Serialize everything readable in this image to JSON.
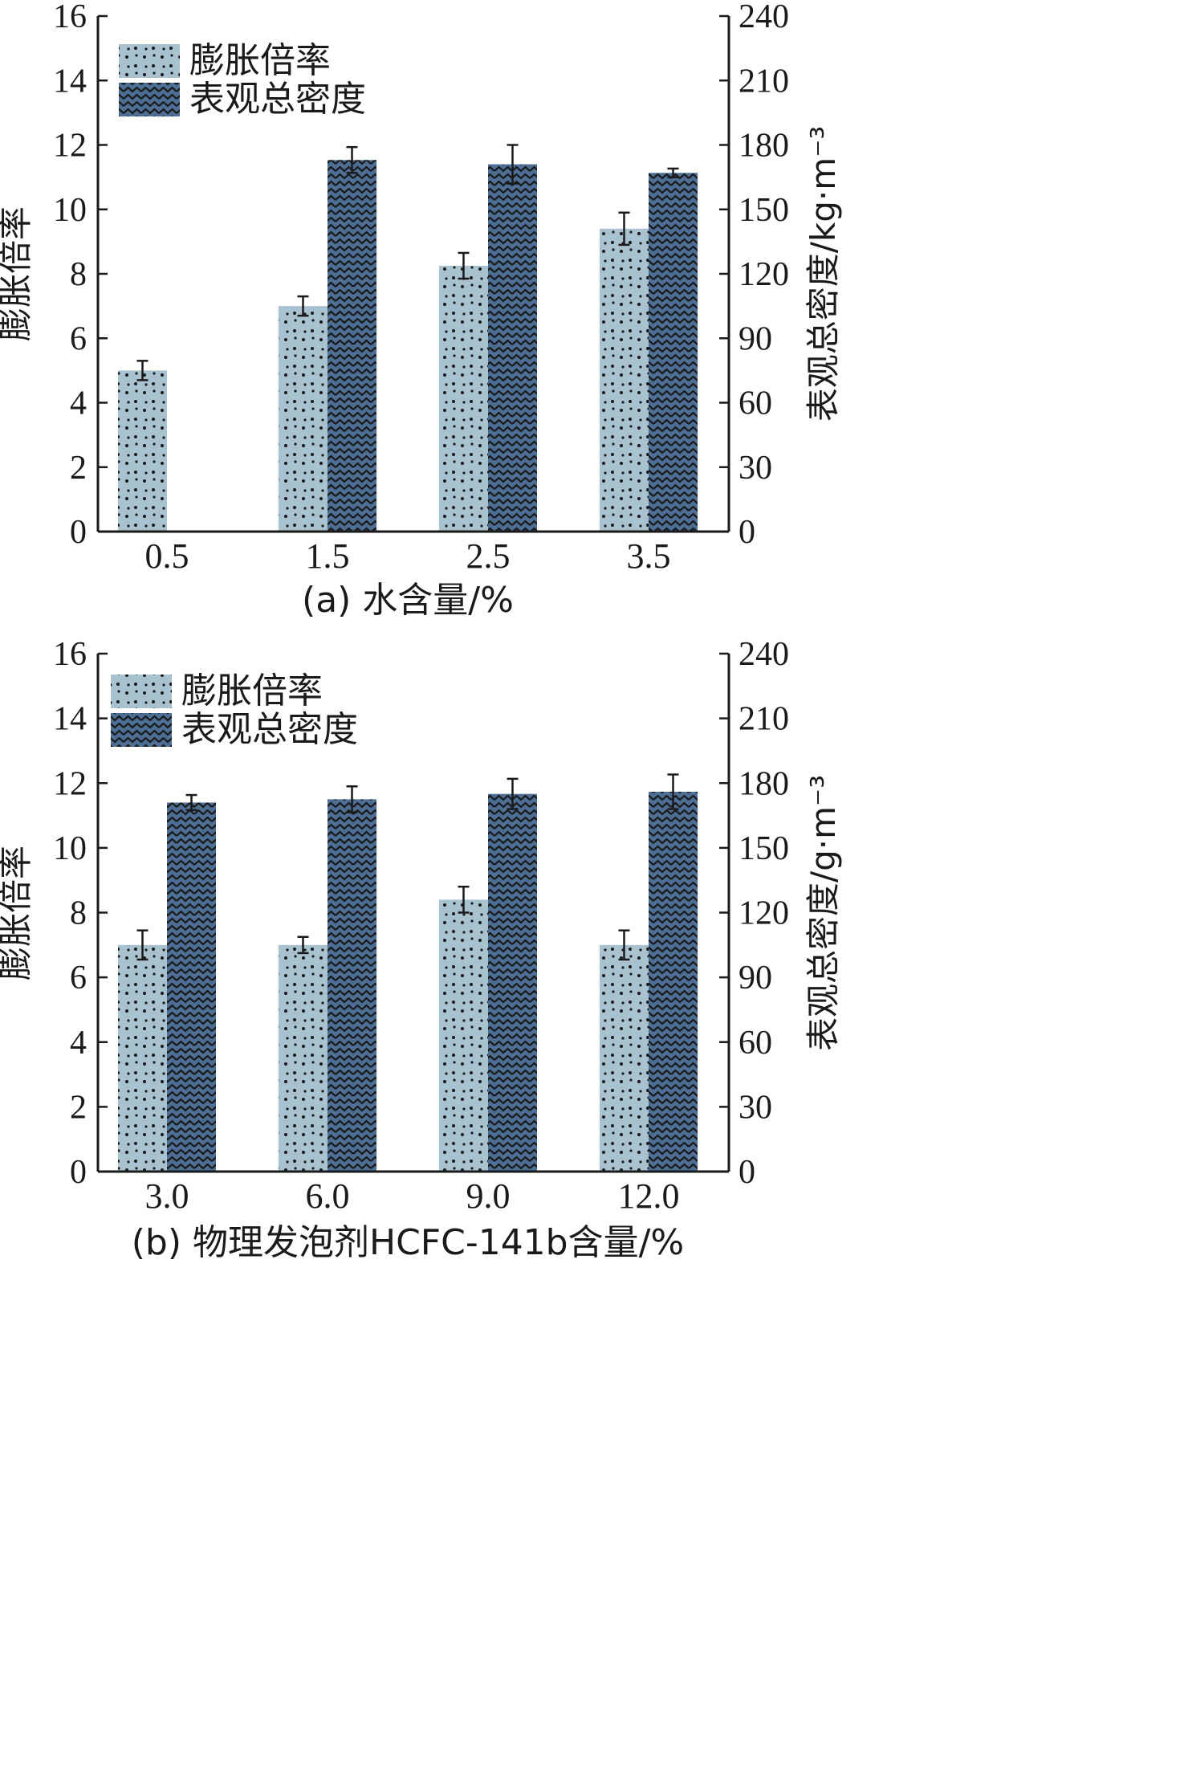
{
  "colors": {
    "expansion": "#a8c2cf",
    "density": "#4d6f95",
    "ink": "#1a1a1a"
  },
  "chart_data": [
    {
      "type": "bar",
      "panel": "a",
      "xtitle": "(a) 水含量/%",
      "ylabel_left": "膨胀倍率",
      "ylabel_right": "表观总密度/kg·m⁻³",
      "ylim_left": [
        0,
        16
      ],
      "ylim_right": [
        0,
        240
      ],
      "yticks_left": [
        "0",
        "2",
        "4",
        "6",
        "8",
        "10",
        "12",
        "14",
        "16"
      ],
      "yticks_right": [
        "0",
        "30",
        "60",
        "90",
        "120",
        "150",
        "180",
        "210",
        "240"
      ],
      "categories": [
        "0.5",
        "1.5",
        "2.5",
        "3.5"
      ],
      "legend_position": "top-left",
      "series": [
        {
          "name": "膨胀倍率",
          "axis": "left",
          "values": [
            5.0,
            7.0,
            8.25,
            9.4
          ],
          "errors": [
            0.3,
            0.3,
            0.4,
            0.5
          ]
        },
        {
          "name": "表观总密度",
          "axis": "right",
          "values": [
            null,
            173,
            171,
            167
          ],
          "errors": [
            null,
            6,
            9,
            2
          ]
        }
      ]
    },
    {
      "type": "bar",
      "panel": "b",
      "xtitle": "(b) 物理发泡剂HCFC-141b含量/%",
      "ylabel_left": "膨胀倍率",
      "ylabel_right": "表观总密度/g·m⁻³",
      "ylim_left": [
        0,
        16
      ],
      "ylim_right": [
        0,
        240
      ],
      "yticks_left": [
        "0",
        "2",
        "4",
        "6",
        "8",
        "10",
        "12",
        "14",
        "16"
      ],
      "yticks_right": [
        "0",
        "30",
        "60",
        "90",
        "120",
        "150",
        "180",
        "210",
        "240"
      ],
      "categories": [
        "3.0",
        "6.0",
        "9.0",
        "12.0"
      ],
      "legend_position": "top-left",
      "series": [
        {
          "name": "膨胀倍率",
          "axis": "left",
          "values": [
            7.0,
            7.0,
            8.4,
            7.0
          ],
          "errors": [
            0.45,
            0.25,
            0.4,
            0.45
          ]
        },
        {
          "name": "表观总密度",
          "axis": "right",
          "values": [
            171,
            172.5,
            175,
            176
          ],
          "errors": [
            3.5,
            6,
            7,
            8
          ]
        }
      ]
    }
  ]
}
